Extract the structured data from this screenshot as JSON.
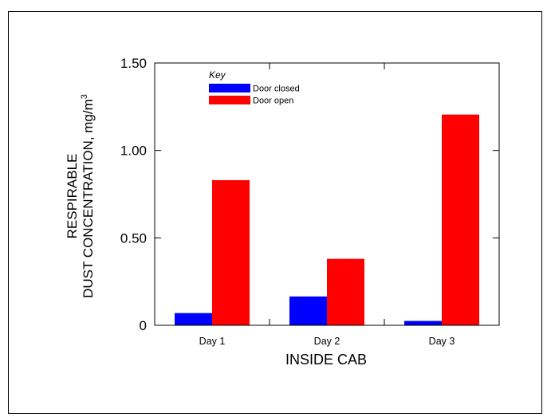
{
  "chart_data": {
    "type": "bar",
    "xlabel": "INSIDE CAB",
    "ylabel_line1": "RESPIRABLE",
    "ylabel_line2": "DUST CONCENTRATION, mg/m",
    "ylabel_sup": "3",
    "categories": [
      "Day 1",
      "Day 2",
      "Day 3"
    ],
    "series": [
      {
        "name": "Door closed",
        "color": "#0000ff",
        "values": [
          0.07,
          0.165,
          0.025
        ]
      },
      {
        "name": "Door open",
        "color": "#ff0000",
        "values": [
          0.83,
          0.38,
          1.205
        ]
      }
    ],
    "ylim": [
      0,
      1.5
    ],
    "yticks": [
      0,
      0.5,
      1.0,
      1.5
    ],
    "ytick_labels": [
      "0",
      "0.50",
      "1.00",
      "1.50"
    ],
    "legend": {
      "title": "Key",
      "placement": "top-left"
    },
    "grid": false
  }
}
